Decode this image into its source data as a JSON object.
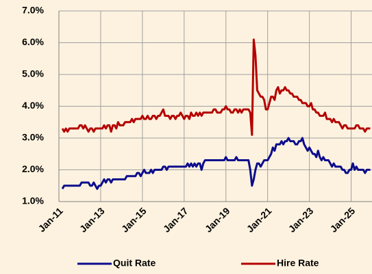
{
  "chart_data": {
    "type": "line",
    "x": [
      "2011-03",
      "2011-04",
      "2011-05",
      "2011-06",
      "2011-07",
      "2011-08",
      "2011-09",
      "2011-10",
      "2011-11",
      "2011-12",
      "2012-01",
      "2012-02",
      "2012-03",
      "2012-04",
      "2012-05",
      "2012-06",
      "2012-07",
      "2012-08",
      "2012-09",
      "2012-10",
      "2012-11",
      "2012-12",
      "2013-01",
      "2013-02",
      "2013-03",
      "2013-04",
      "2013-05",
      "2013-06",
      "2013-07",
      "2013-08",
      "2013-09",
      "2013-10",
      "2013-11",
      "2013-12",
      "2014-01",
      "2014-02",
      "2014-03",
      "2014-04",
      "2014-05",
      "2014-06",
      "2014-07",
      "2014-08",
      "2014-09",
      "2014-10",
      "2014-11",
      "2014-12",
      "2015-01",
      "2015-02",
      "2015-03",
      "2015-04",
      "2015-05",
      "2015-06",
      "2015-07",
      "2015-08",
      "2015-09",
      "2015-10",
      "2015-11",
      "2015-12",
      "2016-01",
      "2016-02",
      "2016-03",
      "2016-04",
      "2016-05",
      "2016-06",
      "2016-07",
      "2016-08",
      "2016-09",
      "2016-10",
      "2016-11",
      "2016-12",
      "2017-01",
      "2017-02",
      "2017-03",
      "2017-04",
      "2017-05",
      "2017-06",
      "2017-07",
      "2017-08",
      "2017-09",
      "2017-10",
      "2017-11",
      "2017-12",
      "2018-01",
      "2018-02",
      "2018-03",
      "2018-04",
      "2018-05",
      "2018-06",
      "2018-07",
      "2018-08",
      "2018-09",
      "2018-10",
      "2018-11",
      "2018-12",
      "2019-01",
      "2019-02",
      "2019-03",
      "2019-04",
      "2019-05",
      "2019-06",
      "2019-07",
      "2019-08",
      "2019-09",
      "2019-10",
      "2019-11",
      "2019-12",
      "2020-01",
      "2020-02",
      "2020-03",
      "2020-04",
      "2020-05",
      "2020-06",
      "2020-07",
      "2020-08",
      "2020-09",
      "2020-10",
      "2020-11",
      "2020-12",
      "2021-01",
      "2021-02",
      "2021-03",
      "2021-04",
      "2021-05",
      "2021-06",
      "2021-07",
      "2021-08",
      "2021-09",
      "2021-10",
      "2021-11",
      "2021-12",
      "2022-01",
      "2022-02",
      "2022-03",
      "2022-04",
      "2022-05",
      "2022-06",
      "2022-07",
      "2022-08",
      "2022-09",
      "2022-10",
      "2022-11",
      "2022-12",
      "2023-01",
      "2023-02",
      "2023-03",
      "2023-04",
      "2023-05",
      "2023-06",
      "2023-07",
      "2023-08",
      "2023-09",
      "2023-10",
      "2023-11",
      "2023-12",
      "2024-01",
      "2024-02",
      "2024-03",
      "2024-04",
      "2024-05",
      "2024-06",
      "2024-07",
      "2024-08",
      "2024-09",
      "2024-10",
      "2024-11",
      "2024-12",
      "2025-01",
      "2025-02",
      "2025-03",
      "2025-04",
      "2025-05",
      "2025-06",
      "2025-07",
      "2025-08",
      "2025-09",
      "2025-10",
      "2025-11",
      "2025-12"
    ],
    "series": [
      {
        "name": "Quit Rate",
        "color": "#0c0c8c",
        "values": [
          1.4,
          1.5,
          1.5,
          1.5,
          1.5,
          1.5,
          1.5,
          1.5,
          1.5,
          1.5,
          1.5,
          1.6,
          1.6,
          1.6,
          1.6,
          1.6,
          1.5,
          1.5,
          1.6,
          1.5,
          1.4,
          1.5,
          1.5,
          1.6,
          1.7,
          1.6,
          1.7,
          1.7,
          1.6,
          1.7,
          1.7,
          1.7,
          1.7,
          1.7,
          1.7,
          1.7,
          1.7,
          1.8,
          1.8,
          1.8,
          1.8,
          1.8,
          1.8,
          1.9,
          1.9,
          1.8,
          1.9,
          2.0,
          1.9,
          1.9,
          1.9,
          2.0,
          1.9,
          2.0,
          2.0,
          2.0,
          2.0,
          2.0,
          2.1,
          2.1,
          2.0,
          2.1,
          2.1,
          2.1,
          2.1,
          2.1,
          2.1,
          2.1,
          2.1,
          2.1,
          2.1,
          2.1,
          2.2,
          2.1,
          2.2,
          2.1,
          2.2,
          2.1,
          2.2,
          2.2,
          2.0,
          2.2,
          2.3,
          2.3,
          2.3,
          2.3,
          2.3,
          2.3,
          2.3,
          2.3,
          2.3,
          2.3,
          2.3,
          2.3,
          2.4,
          2.3,
          2.3,
          2.3,
          2.3,
          2.3,
          2.4,
          2.3,
          2.3,
          2.3,
          2.3,
          2.3,
          2.3,
          2.3,
          2.0,
          1.5,
          1.7,
          2.0,
          2.2,
          2.2,
          2.1,
          2.2,
          2.3,
          2.3,
          2.3,
          2.4,
          2.5,
          2.7,
          2.6,
          2.8,
          2.8,
          2.8,
          2.9,
          2.8,
          2.9,
          2.9,
          3.0,
          2.9,
          2.9,
          2.9,
          2.8,
          2.8,
          2.9,
          2.9,
          3.0,
          2.8,
          2.7,
          2.6,
          2.7,
          2.6,
          2.5,
          2.5,
          2.4,
          2.6,
          2.4,
          2.3,
          2.4,
          2.3,
          2.3,
          2.3,
          2.2,
          2.1,
          2.2,
          2.1,
          2.1,
          2.1,
          2.1,
          2.0,
          2.0,
          1.9,
          1.9,
          2.0,
          2.0,
          2.2,
          2.0,
          2.1,
          2.0,
          2.0,
          2.0,
          2.0,
          1.9,
          2.0,
          2.0,
          2.0
        ]
      },
      {
        "name": "Hire Rate",
        "color": "#b40000",
        "values": [
          3.3,
          3.2,
          3.3,
          3.2,
          3.3,
          3.3,
          3.3,
          3.3,
          3.3,
          3.3,
          3.4,
          3.4,
          3.3,
          3.4,
          3.3,
          3.2,
          3.3,
          3.3,
          3.2,
          3.3,
          3.3,
          3.3,
          3.3,
          3.3,
          3.4,
          3.3,
          3.4,
          3.4,
          3.2,
          3.4,
          3.4,
          3.3,
          3.5,
          3.4,
          3.4,
          3.4,
          3.5,
          3.5,
          3.5,
          3.5,
          3.6,
          3.5,
          3.6,
          3.6,
          3.6,
          3.6,
          3.7,
          3.6,
          3.6,
          3.7,
          3.6,
          3.6,
          3.7,
          3.7,
          3.6,
          3.7,
          3.7,
          3.8,
          3.9,
          3.7,
          3.7,
          3.7,
          3.6,
          3.7,
          3.7,
          3.6,
          3.7,
          3.7,
          3.8,
          3.7,
          3.6,
          3.7,
          3.7,
          3.6,
          3.8,
          3.7,
          3.7,
          3.8,
          3.7,
          3.8,
          3.7,
          3.8,
          3.8,
          3.8,
          3.8,
          3.8,
          3.8,
          3.9,
          3.9,
          3.8,
          3.8,
          3.8,
          3.9,
          3.9,
          4.0,
          3.9,
          3.9,
          3.8,
          3.8,
          3.9,
          3.9,
          3.8,
          3.9,
          3.8,
          3.9,
          3.9,
          3.9,
          3.9,
          3.8,
          3.1,
          6.1,
          5.6,
          4.5,
          4.4,
          4.3,
          4.3,
          4.2,
          3.9,
          3.9,
          4.1,
          4.3,
          4.3,
          4.2,
          4.5,
          4.6,
          4.4,
          4.5,
          4.5,
          4.6,
          4.5,
          4.5,
          4.4,
          4.4,
          4.3,
          4.3,
          4.3,
          4.2,
          4.2,
          4.1,
          4.1,
          4.1,
          4.0,
          4.0,
          4.1,
          3.9,
          3.9,
          3.8,
          3.8,
          3.7,
          3.7,
          3.7,
          3.8,
          3.6,
          3.6,
          3.6,
          3.5,
          3.6,
          3.5,
          3.5,
          3.5,
          3.4,
          3.3,
          3.4,
          3.4,
          3.3,
          3.3,
          3.3,
          3.3,
          3.3,
          3.4,
          3.4,
          3.3,
          3.3,
          3.3,
          3.2,
          3.3,
          3.3,
          3.3
        ]
      }
    ],
    "xlim": [
      "2011-01",
      "2026-01"
    ],
    "xticks": [
      {
        "value": "2011-01",
        "label": "Jan-11"
      },
      {
        "value": "2013-01",
        "label": "Jan-13"
      },
      {
        "value": "2015-01",
        "label": "Jan-15"
      },
      {
        "value": "2017-01",
        "label": "Jan-17"
      },
      {
        "value": "2019-01",
        "label": "Jan-19"
      },
      {
        "value": "2021-01",
        "label": "Jan-21"
      },
      {
        "value": "2023-01",
        "label": "Jan-23"
      },
      {
        "value": "2025-01",
        "label": "Jan-25"
      }
    ],
    "ylim": [
      1,
      7
    ],
    "yticks": [
      {
        "value": 1,
        "label": "1.0%"
      },
      {
        "value": 2,
        "label": "2.0%"
      },
      {
        "value": 3,
        "label": "3.0%"
      },
      {
        "value": 4,
        "label": "4.0%"
      },
      {
        "value": 5,
        "label": "5.0%"
      },
      {
        "value": 6,
        "label": "6.0%"
      },
      {
        "value": 7,
        "label": "7.0%"
      }
    ],
    "grid": true,
    "legend": "bottom"
  }
}
